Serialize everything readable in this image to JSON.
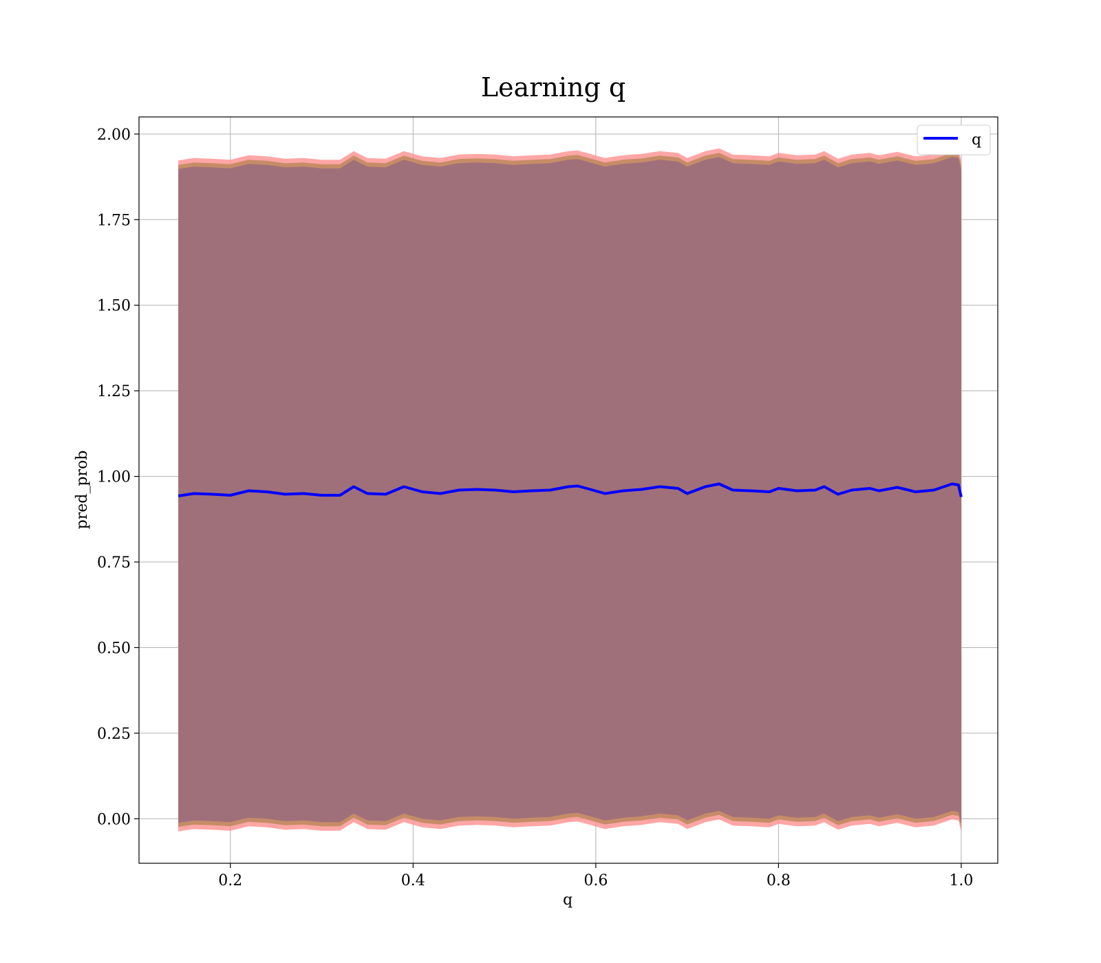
{
  "chart_data": {
    "type": "area",
    "title": "Learning q",
    "xlabel": "q",
    "ylabel": "pred_prob",
    "xlim": [
      0.1,
      1.04
    ],
    "ylim": [
      -0.13,
      2.05
    ],
    "xticks": [
      0.2,
      0.4,
      0.6,
      0.8,
      1.0
    ],
    "xtick_labels": [
      "0.2",
      "0.4",
      "0.6",
      "0.8",
      "1.0"
    ],
    "yticks": [
      0.0,
      0.25,
      0.5,
      0.75,
      1.0,
      1.25,
      1.5,
      1.75,
      2.0
    ],
    "ytick_labels": [
      "0.00",
      "0.25",
      "0.50",
      "0.75",
      "1.00",
      "1.25",
      "1.50",
      "1.75",
      "2.00"
    ],
    "grid": true,
    "legend": {
      "position": "top-right",
      "entries": [
        "q"
      ]
    },
    "series": [
      {
        "name": "q",
        "color": "#0000ff",
        "x": [
          0.143,
          0.16,
          0.18,
          0.2,
          0.22,
          0.24,
          0.26,
          0.28,
          0.3,
          0.32,
          0.335,
          0.35,
          0.37,
          0.39,
          0.41,
          0.43,
          0.45,
          0.47,
          0.49,
          0.51,
          0.53,
          0.55,
          0.57,
          0.58,
          0.59,
          0.61,
          0.63,
          0.65,
          0.67,
          0.69,
          0.7,
          0.72,
          0.735,
          0.75,
          0.77,
          0.79,
          0.8,
          0.82,
          0.84,
          0.85,
          0.865,
          0.88,
          0.9,
          0.91,
          0.93,
          0.95,
          0.97,
          0.99,
          0.997,
          1.0
        ],
        "y": [
          0.943,
          0.95,
          0.948,
          0.945,
          0.958,
          0.955,
          0.948,
          0.95,
          0.945,
          0.945,
          0.97,
          0.95,
          0.948,
          0.97,
          0.955,
          0.95,
          0.96,
          0.962,
          0.96,
          0.955,
          0.958,
          0.96,
          0.97,
          0.972,
          0.965,
          0.95,
          0.958,
          0.962,
          0.97,
          0.965,
          0.95,
          0.97,
          0.978,
          0.96,
          0.958,
          0.955,
          0.965,
          0.958,
          0.96,
          0.97,
          0.948,
          0.96,
          0.965,
          0.958,
          0.968,
          0.955,
          0.96,
          0.978,
          0.975,
          0.94
        ]
      }
    ],
    "band": {
      "color_fill": "#a0707a",
      "color_edge_outer": "#ff9090",
      "color_edge_inner": "#c08a60",
      "offset_mean": 0.955,
      "outer_extra": 0.025,
      "inner_extra": 0.012
    }
  }
}
